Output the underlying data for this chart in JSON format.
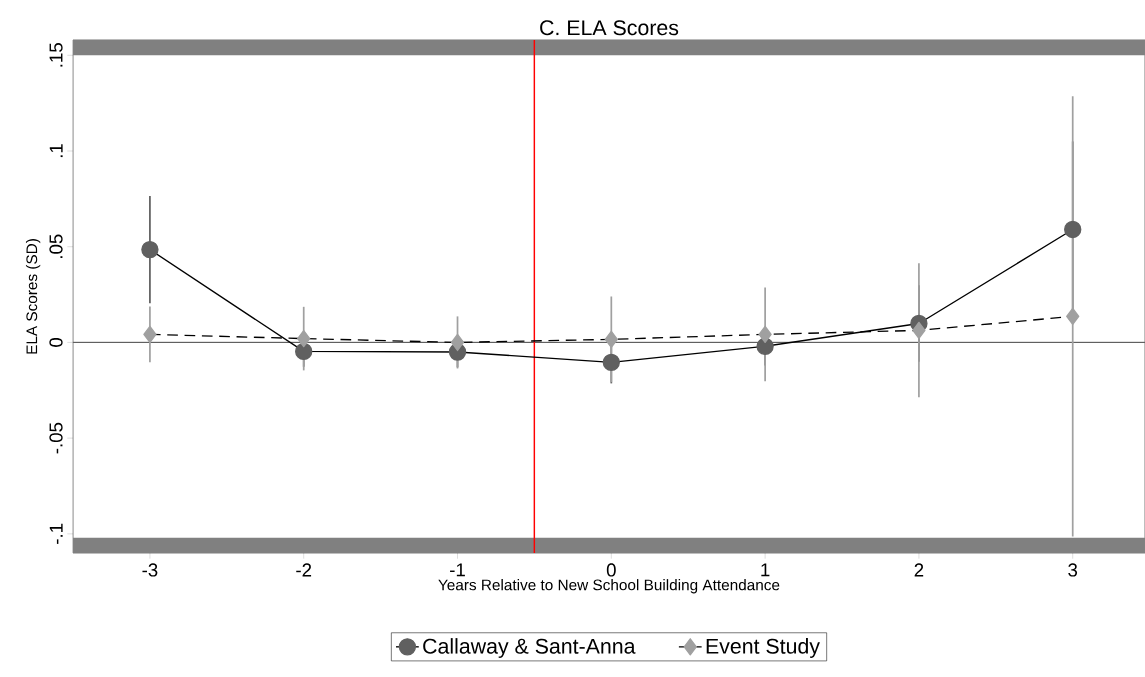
{
  "chart_data": {
    "type": "line",
    "title": "C. ELA Scores",
    "xlabel": "Years Relative to New School Building Attendance",
    "ylabel": "ELA Scores (SD)",
    "x": [
      -3,
      -2,
      -1,
      0,
      1,
      2,
      3
    ],
    "series": [
      {
        "name": "Callaway & Sant-Anna",
        "color": "#606060",
        "marker": "circle",
        "line_style": "solid",
        "values": [
          0.0485,
          -0.0047,
          -0.005,
          -0.0104,
          -0.002,
          0.0099,
          0.059
        ],
        "errors": [
          0.028,
          0.008,
          0.008,
          0.011,
          0.01,
          0.02,
          0.046
        ]
      },
      {
        "name": "Event Study",
        "color": "#a0a0a0",
        "marker": "diamond",
        "line_style": "dashed",
        "values": [
          0.0042,
          0.002,
          0.0,
          0.0016,
          0.0042,
          0.0063,
          0.0136
        ],
        "errors": [
          0.0146,
          0.0166,
          0.0136,
          0.0224,
          0.0245,
          0.035,
          0.115
        ]
      }
    ],
    "xlim": [
      -3.5,
      3.47
    ],
    "ylim": [
      -0.11,
      0.158
    ],
    "xticks": [
      -3,
      -2,
      -1,
      0,
      1,
      2,
      3
    ],
    "yticks": [
      {
        "value": -0.1,
        "label": "-.1"
      },
      {
        "value": -0.05,
        "label": "-.05"
      },
      0,
      {
        "value": 0.05,
        "label": ".05"
      },
      {
        "value": 0.1,
        "label": ".1"
      },
      {
        "value": 0.15,
        "label": ".15"
      }
    ],
    "ref_lines": [
      {
        "axis": "y",
        "value": 0,
        "color": "#606060"
      },
      {
        "axis": "x",
        "value": -0.5,
        "color": "#ff0000"
      }
    ],
    "bands": [
      {
        "axis": "y",
        "from": 0.15,
        "to": 0.158,
        "color": "#808080"
      },
      {
        "axis": "y",
        "from": -0.11,
        "to": -0.102,
        "color": "#808080"
      }
    ],
    "grid": false,
    "legend": "bottom"
  }
}
